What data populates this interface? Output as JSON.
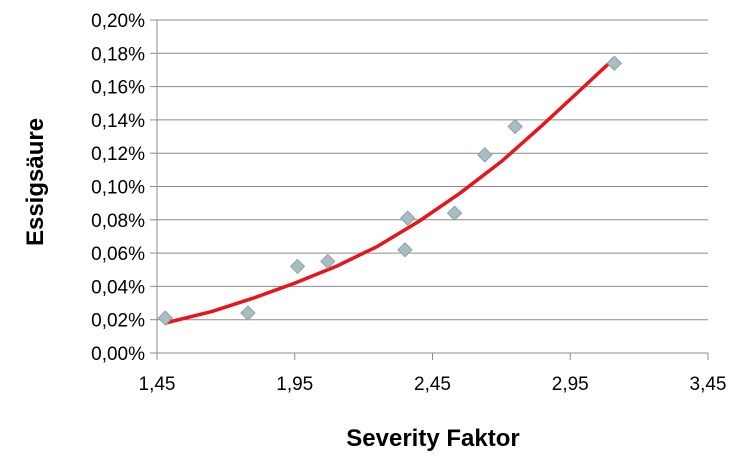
{
  "chart_data": {
    "type": "scatter",
    "title": "",
    "xlabel": "Severity Faktor",
    "ylabel": "Essigsäure",
    "xlim": [
      1.45,
      3.45
    ],
    "ylim": [
      0.0,
      0.2
    ],
    "x_ticks": [
      "1,45",
      "1,95",
      "2,45",
      "2,95",
      "3,45"
    ],
    "x_tick_values": [
      1.45,
      1.95,
      2.45,
      2.95,
      3.45
    ],
    "y_ticks": [
      "0,00%",
      "0,02%",
      "0,04%",
      "0,06%",
      "0,08%",
      "0,10%",
      "0,12%",
      "0,14%",
      "0,16%",
      "0,18%",
      "0,20%"
    ],
    "y_tick_values": [
      0.0,
      0.02,
      0.04,
      0.06,
      0.08,
      0.1,
      0.12,
      0.14,
      0.16,
      0.18,
      0.2
    ],
    "grid": "horizontal",
    "legend": "none",
    "series": [
      {
        "type": "scatter",
        "marker": "diamond",
        "color": "#9fb3b8",
        "x": [
          1.48,
          1.78,
          1.96,
          2.07,
          2.35,
          2.36,
          2.53,
          2.64,
          2.75,
          3.11
        ],
        "y": [
          0.021,
          0.024,
          0.052,
          0.055,
          0.062,
          0.081,
          0.084,
          0.119,
          0.136,
          0.174
        ]
      },
      {
        "type": "line",
        "color": "#e8141b",
        "trend": "exponential",
        "x": [
          1.48,
          1.65,
          1.8,
          1.95,
          2.1,
          2.25,
          2.4,
          2.55,
          2.7,
          2.85,
          3.0,
          3.11
        ],
        "y": [
          0.018,
          0.025,
          0.033,
          0.042,
          0.052,
          0.064,
          0.079,
          0.096,
          0.115,
          0.137,
          0.16,
          0.177
        ]
      }
    ]
  },
  "colors": {
    "grid": "#8c8c8c",
    "axis": "#8c8c8c",
    "marker_fill": "#a9bcc1",
    "marker_stroke": "#8ea3a8",
    "trendline": "#e8141b"
  }
}
